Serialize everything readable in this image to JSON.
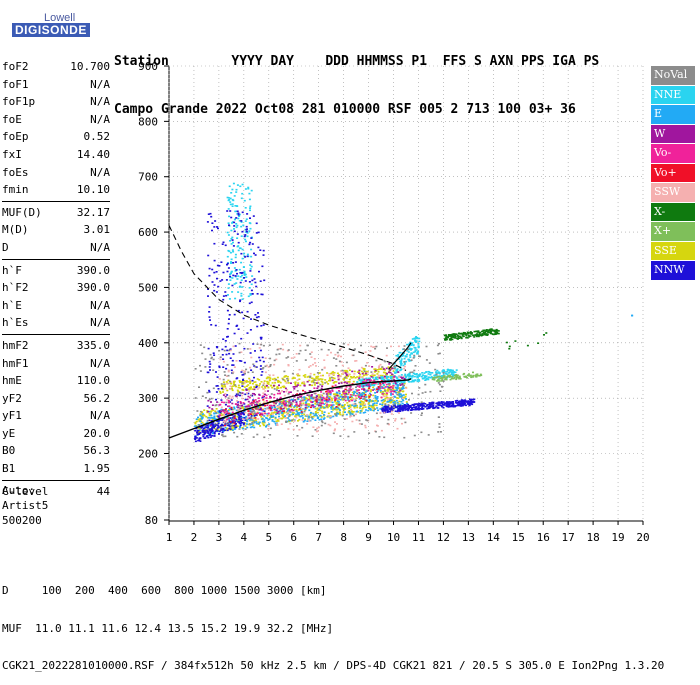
{
  "logo": {
    "top": "Lowell",
    "main": "DIGISONDE"
  },
  "header": {
    "line1": "Station        YYYY DAY    DDD HHMMSS P1  FFS S AXN PPS IGA PS",
    "line2": "Campo Grande 2022 Oct08 281 010000 RSF 005 2 713 100 03+ 36"
  },
  "params_groups": [
    [
      {
        "label": "foF2",
        "value": "10.700"
      },
      {
        "label": "foF1",
        "value": "N/A"
      },
      {
        "label": "foF1p",
        "value": "N/A"
      },
      {
        "label": "foE",
        "value": "N/A"
      },
      {
        "label": "foEp",
        "value": "0.52"
      },
      {
        "label": "fxI",
        "value": "14.40"
      },
      {
        "label": "foEs",
        "value": "N/A"
      },
      {
        "label": "fmin",
        "value": "10.10"
      }
    ],
    [
      {
        "label": "MUF(D)",
        "value": "32.17"
      },
      {
        "label": "M(D)",
        "value": "3.01"
      },
      {
        "label": "D",
        "value": "N/A"
      }
    ],
    [
      {
        "label": "h`F",
        "value": "390.0"
      },
      {
        "label": "h`F2",
        "value": "390.0"
      },
      {
        "label": "h`E",
        "value": "N/A"
      },
      {
        "label": "h`Es",
        "value": "N/A"
      }
    ],
    [
      {
        "label": "hmF2",
        "value": "335.0"
      },
      {
        "label": "hmF1",
        "value": "N/A"
      },
      {
        "label": "hmE",
        "value": "110.0"
      },
      {
        "label": "yF2",
        "value": "56.2"
      },
      {
        "label": "yF1",
        "value": "N/A"
      },
      {
        "label": "yE",
        "value": "20.0"
      },
      {
        "label": "B0",
        "value": "56.3"
      },
      {
        "label": "B1",
        "value": "1.95"
      }
    ],
    [
      {
        "label": "C-level",
        "value": "44"
      }
    ]
  ],
  "auto": {
    "line1": "Auto:",
    "line2": "Artist5",
    "line3": "500200"
  },
  "bottom": {
    "d_line": "D     100  200  400  600  800 1000 1500 3000 [km]",
    "muf_line": "MUF  11.0 11.1 11.6 12.4 13.5 15.2 19.9 32.2 [MHz]",
    "file_line": "CGK21_2022281010000.RSF / 384fx512h 50 kHz 2.5 km / DPS-4D CGK21 821 / 20.5 S 305.0 E Ion2Png 1.3.20"
  },
  "legend": [
    {
      "label": "NoVal",
      "color": "#8c8c8c"
    },
    {
      "label": "NNE",
      "color": "#2ad4f0"
    },
    {
      "label": "E",
      "color": "#22aaf5"
    },
    {
      "label": "W",
      "color": "#a0169e"
    },
    {
      "label": "Vo-",
      "color": "#f0229a"
    },
    {
      "label": "Vo+",
      "color": "#f01028"
    },
    {
      "label": "SSW",
      "color": "#f5b0b0"
    },
    {
      "label": "X-",
      "color": "#0f7a0f"
    },
    {
      "label": "X+",
      "color": "#7fbf5a"
    },
    {
      "label": "SSE",
      "color": "#d6d60f"
    },
    {
      "label": "NNW",
      "color": "#1e10d8"
    }
  ],
  "chart_data": {
    "type": "scatter",
    "title": "",
    "xlabel": "",
    "ylabel": "",
    "xlim": [
      1,
      20
    ],
    "ylim": [
      80,
      900
    ],
    "xticks": [
      1,
      2,
      3,
      4,
      5,
      6,
      7,
      8,
      9,
      10,
      11,
      12,
      13,
      14,
      15,
      16,
      17,
      18,
      19,
      20
    ],
    "yticks": [
      80,
      200,
      300,
      400,
      500,
      600,
      700,
      800,
      900
    ],
    "grid": "dotted",
    "clusters": [
      {
        "series": "SSE",
        "x": [
          2.0,
          10.5
        ],
        "y": [
          235,
          330
        ],
        "n": 700
      },
      {
        "series": "SSE",
        "x": [
          3.0,
          10.0
        ],
        "y": [
          310,
          360
        ],
        "n": 300
      },
      {
        "series": "E",
        "x": [
          2.0,
          10.5
        ],
        "y": [
          230,
          330
        ],
        "n": 500
      },
      {
        "series": "NNE",
        "x": [
          8.5,
          12.5
        ],
        "y": [
          320,
          355
        ],
        "n": 300
      },
      {
        "series": "NNE",
        "x": [
          3.3,
          4.3
        ],
        "y": [
          480,
          690
        ],
        "n": 160
      },
      {
        "series": "NNE",
        "x": [
          10.0,
          11.0
        ],
        "y": [
          340,
          420
        ],
        "n": 120
      },
      {
        "series": "NNW",
        "x": [
          9.5,
          13.2
        ],
        "y": [
          275,
          300
        ],
        "n": 380
      },
      {
        "series": "NNW",
        "x": [
          2.5,
          4.8
        ],
        "y": [
          260,
          640
        ],
        "n": 280
      },
      {
        "series": "NNW",
        "x": [
          2.0,
          4.0
        ],
        "y": [
          220,
          280
        ],
        "n": 200
      },
      {
        "series": "X-",
        "x": [
          12.0,
          14.2
        ],
        "y": [
          405,
          428
        ],
        "n": 170
      },
      {
        "series": "X+",
        "x": [
          11.5,
          13.5
        ],
        "y": [
          330,
          350
        ],
        "n": 80
      },
      {
        "series": "SSW",
        "x": [
          3.0,
          10.5
        ],
        "y": [
          240,
          400
        ],
        "n": 300
      },
      {
        "series": "W",
        "x": [
          2.5,
          10.5
        ],
        "y": [
          250,
          370
        ],
        "n": 220
      },
      {
        "series": "Vo-",
        "x": [
          3.0,
          10.0
        ],
        "y": [
          260,
          340
        ],
        "n": 160
      },
      {
        "series": "Vo+",
        "x": [
          3.0,
          9.5
        ],
        "y": [
          250,
          340
        ],
        "n": 50
      },
      {
        "series": "NoVal",
        "x": [
          2.0,
          12.0
        ],
        "y": [
          230,
          400
        ],
        "n": 300
      },
      {
        "series": "X-",
        "x": [
          14.5,
          16.5
        ],
        "y": [
          380,
          430
        ],
        "n": 8
      },
      {
        "series": "E",
        "x": [
          19.5,
          20.0
        ],
        "y": [
          448,
          455
        ],
        "n": 2
      }
    ],
    "profile_curve": {
      "x": [
        1.0,
        2.0,
        3.0,
        4.0,
        5.0,
        6.0,
        7.0,
        8.0,
        9.0,
        9.6,
        10.0,
        10.3,
        10.6,
        10.7
      ],
      "y": [
        228,
        245,
        262,
        278,
        292,
        304,
        314,
        322,
        328,
        330,
        331,
        332,
        333,
        335
      ]
    },
    "profile_curve_2": {
      "x": [
        9.8,
        10.2,
        10.55,
        10.7
      ],
      "y": [
        352,
        372,
        390,
        400
      ]
    },
    "dashed_curve": {
      "x": [
        1.0,
        1.5,
        2.0,
        3.0,
        4.0,
        5.0,
        6.0,
        7.0,
        8.0,
        9.0,
        10.0,
        10.5
      ],
      "y": [
        612,
        565,
        525,
        478,
        450,
        432,
        418,
        405,
        392,
        378,
        362,
        350
      ]
    }
  }
}
